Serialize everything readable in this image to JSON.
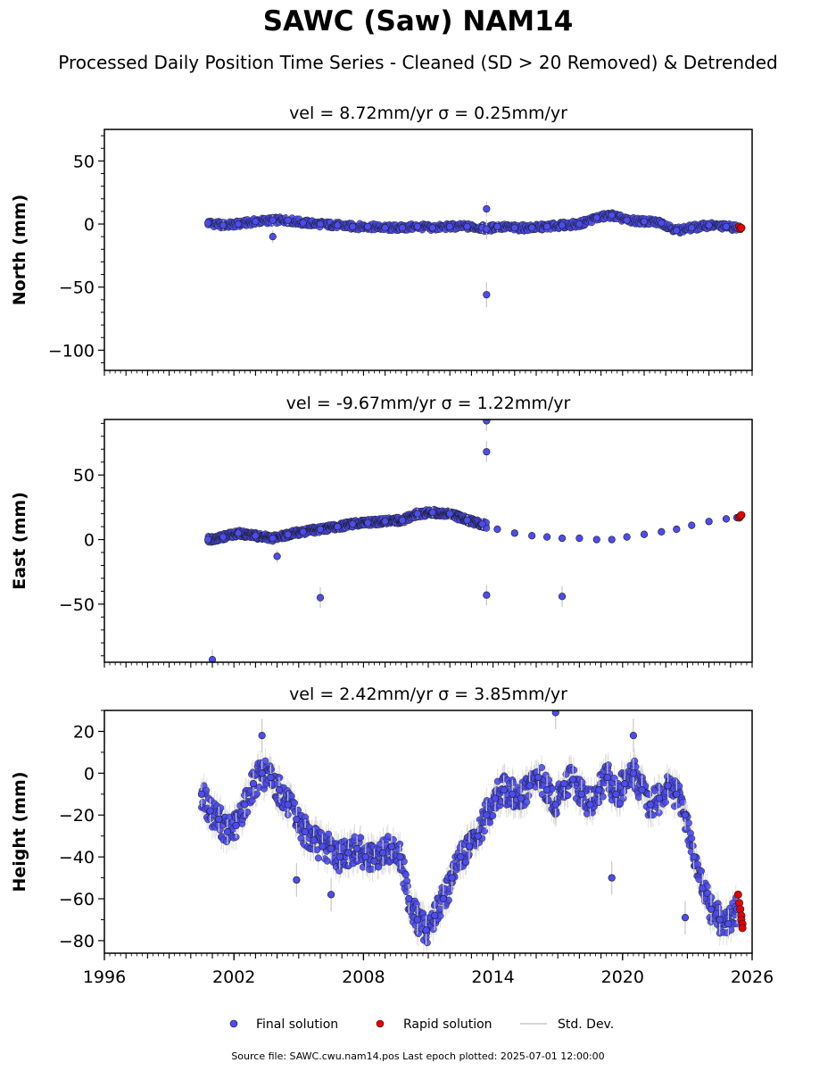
{
  "title": "SAWC (Saw) NAM14",
  "subtitle": "Processed Daily Position Time Series - Cleaned (SD > 20 Removed) & Detrended",
  "footer": "Source file: SAWC.cwu.nam14.pos  Last epoch plotted: 2025-07-01 12:00:00",
  "colors": {
    "final": "#4c4cf0",
    "rapid": "#e60000",
    "stddev": "#c8c8c8",
    "edge": "#1a1a1a"
  },
  "legend": [
    {
      "key": "final",
      "label": "Final solution",
      "marker": "dot"
    },
    {
      "key": "rapid",
      "label": "Rapid solution",
      "marker": "dot"
    },
    {
      "key": "stddev",
      "label": "Std. Dev.",
      "marker": "line"
    }
  ],
  "chart_data": [
    {
      "type": "scatter",
      "title": "vel = 8.72mm/yr   σ = 0.25mm/yr",
      "ylabel": "North (mm)",
      "xlim": [
        1996,
        2026
      ],
      "ylim": [
        -116,
        75
      ],
      "yticks": [
        50,
        0,
        -50,
        -100
      ],
      "ytick_labels": [
        "50",
        "0",
        "−50",
        "−100"
      ],
      "xticks": [],
      "series": [
        {
          "name": "Final solution",
          "x": [
            2000.8,
            2001.5,
            2002.2,
            2003.0,
            2003.8,
            2004.5,
            2005.2,
            2006.0,
            2006.8,
            2007.5,
            2008.2,
            2009.0,
            2009.8,
            2010.5,
            2011.2,
            2012.0,
            2012.8,
            2013.5,
            2013.7,
            2014.2,
            2015.0,
            2015.8,
            2016.5,
            2017.2,
            2018.0,
            2018.8,
            2019.5,
            2020.2,
            2021.0,
            2021.8,
            2022.5,
            2023.2,
            2024.0,
            2024.8,
            2025.3,
            2013.7,
            2013.7,
            2003.8
          ],
          "y": [
            1,
            -1,
            0,
            2,
            3,
            3,
            1,
            0,
            -1,
            -2,
            -2,
            -3,
            -3,
            -2,
            -3,
            -2,
            -2,
            -3,
            -4,
            -2,
            -3,
            -3,
            -2,
            -1,
            0,
            5,
            7,
            3,
            2,
            1,
            -5,
            -3,
            -1,
            -2,
            -3,
            -56,
            12,
            -10
          ],
          "sd": [
            3,
            4,
            3,
            3,
            4,
            4,
            3,
            3,
            3,
            3,
            3,
            3,
            3,
            3,
            3,
            3,
            3,
            4,
            8,
            4,
            3,
            3,
            3,
            3,
            3,
            3,
            3,
            3,
            3,
            3,
            3,
            3,
            3,
            3,
            3,
            10,
            6,
            5
          ]
        },
        {
          "name": "Rapid solution",
          "x": [
            2025.4,
            2025.45,
            2025.5
          ],
          "y": [
            -2,
            -4,
            -3
          ],
          "sd": [
            1,
            1,
            1
          ]
        }
      ]
    },
    {
      "type": "scatter",
      "title": "vel = -9.67mm/yr   σ = 1.22mm/yr",
      "ylabel": "East (mm)",
      "xlim": [
        1996,
        2026
      ],
      "ylim": [
        -95,
        93
      ],
      "yticks": [
        50,
        0,
        -50
      ],
      "ytick_labels": [
        "50",
        "0",
        "−50"
      ],
      "xticks": [],
      "series": [
        {
          "name": "Final solution",
          "x": [
            2000.8,
            2001.5,
            2002.2,
            2003.0,
            2003.8,
            2004.5,
            2005.2,
            2006.0,
            2006.8,
            2007.5,
            2008.2,
            2009.0,
            2009.8,
            2010.5,
            2011.2,
            2012.0,
            2012.8,
            2013.5,
            2014.2,
            2015.0,
            2015.8,
            2016.5,
            2017.2,
            2018.0,
            2018.8,
            2019.5,
            2020.2,
            2021.0,
            2021.8,
            2022.5,
            2023.2,
            2024.0,
            2024.8,
            2025.3,
            2013.7,
            2013.7,
            2013.7,
            2006.0,
            2017.2,
            2001.0,
            2004.0
          ],
          "y": [
            0,
            2,
            5,
            3,
            1,
            4,
            6,
            8,
            10,
            12,
            13,
            14,
            15,
            20,
            21,
            20,
            15,
            12,
            8,
            5,
            3,
            2,
            1,
            1,
            0,
            0,
            2,
            4,
            6,
            8,
            11,
            14,
            16,
            17,
            92,
            68,
            -43,
            -45,
            -44,
            -93,
            -13
          ],
          "sd": [
            3,
            3,
            3,
            3,
            3,
            3,
            3,
            3,
            3,
            3,
            3,
            3,
            3,
            4,
            4,
            4,
            4,
            4,
            3,
            3,
            3,
            3,
            3,
            3,
            3,
            3,
            3,
            3,
            3,
            3,
            3,
            3,
            3,
            3,
            8,
            8,
            8,
            8,
            8,
            8,
            5
          ]
        },
        {
          "name": "Rapid solution",
          "x": [
            2025.4,
            2025.45,
            2025.5
          ],
          "y": [
            17,
            18,
            19
          ],
          "sd": [
            1,
            1,
            1
          ]
        }
      ]
    },
    {
      "type": "scatter",
      "title": "vel = 2.42mm/yr   σ = 3.85mm/yr",
      "ylabel": "Height (mm)",
      "xlim": [
        1996,
        2026
      ],
      "ylim": [
        -86,
        30
      ],
      "yticks": [
        20,
        0,
        -20,
        -40,
        -60,
        -80
      ],
      "ytick_labels": [
        "20",
        "0",
        "−20",
        "−40",
        "−60",
        "−80"
      ],
      "xticks": [
        1996,
        2002,
        2008,
        2014,
        2020,
        2026
      ],
      "xtick_labels": [
        "1996",
        "2002",
        "2008",
        "2014",
        "2020",
        "2026"
      ],
      "series": [
        {
          "name": "Final solution",
          "x": [
            2000.5,
            2000.9,
            2001.3,
            2001.7,
            2002.1,
            2002.5,
            2002.9,
            2003.3,
            2003.7,
            2004.1,
            2004.5,
            2004.9,
            2005.3,
            2005.7,
            2006.1,
            2006.5,
            2006.9,
            2007.3,
            2007.7,
            2008.1,
            2008.5,
            2008.9,
            2009.3,
            2009.7,
            2010.1,
            2010.5,
            2010.9,
            2011.3,
            2011.7,
            2012.1,
            2012.5,
            2012.9,
            2013.3,
            2013.7,
            2014.1,
            2014.5,
            2014.9,
            2015.3,
            2015.7,
            2016.1,
            2016.5,
            2016.9,
            2017.3,
            2017.7,
            2018.1,
            2018.5,
            2018.9,
            2019.3,
            2019.7,
            2020.1,
            2020.5,
            2020.9,
            2021.3,
            2021.7,
            2022.1,
            2022.5,
            2022.9,
            2023.3,
            2023.7,
            2024.1,
            2024.5,
            2024.9,
            2025.3,
            2003.3,
            2016.9,
            2020.5,
            2019.5,
            2004.9,
            2006.5,
            2022.9
          ],
          "y": [
            -10,
            -18,
            -22,
            -28,
            -25,
            -15,
            -5,
            0,
            -2,
            -8,
            -15,
            -22,
            -28,
            -32,
            -35,
            -36,
            -40,
            -38,
            -36,
            -40,
            -42,
            -38,
            -35,
            -40,
            -60,
            -70,
            -75,
            -68,
            -60,
            -50,
            -40,
            -35,
            -30,
            -20,
            -12,
            -8,
            -10,
            -12,
            -6,
            -2,
            -8,
            -15,
            -5,
            -3,
            -10,
            -15,
            -8,
            -2,
            -10,
            -5,
            0,
            -8,
            -15,
            -12,
            -6,
            -10,
            -20,
            -40,
            -55,
            -65,
            -70,
            -72,
            -65,
            18,
            29,
            18,
            -50,
            -51,
            -58,
            -69
          ],
          "sd": [
            6,
            6,
            6,
            6,
            6,
            6,
            6,
            6,
            6,
            6,
            6,
            6,
            6,
            6,
            6,
            6,
            6,
            6,
            6,
            6,
            6,
            6,
            6,
            6,
            7,
            7,
            7,
            7,
            7,
            7,
            7,
            7,
            7,
            7,
            7,
            7,
            7,
            7,
            7,
            7,
            7,
            7,
            7,
            7,
            7,
            7,
            7,
            7,
            7,
            7,
            7,
            7,
            7,
            7,
            7,
            7,
            7,
            7,
            7,
            7,
            7,
            7,
            7,
            8,
            8,
            8,
            8,
            8,
            8,
            8
          ]
        },
        {
          "name": "Rapid solution",
          "x": [
            2025.35,
            2025.4,
            2025.45,
            2025.5,
            2025.5,
            2025.55,
            2025.55
          ],
          "y": [
            -58,
            -62,
            -65,
            -68,
            -70,
            -72,
            -74
          ],
          "sd": [
            1,
            1,
            1,
            1,
            1,
            1,
            1
          ]
        }
      ]
    }
  ]
}
